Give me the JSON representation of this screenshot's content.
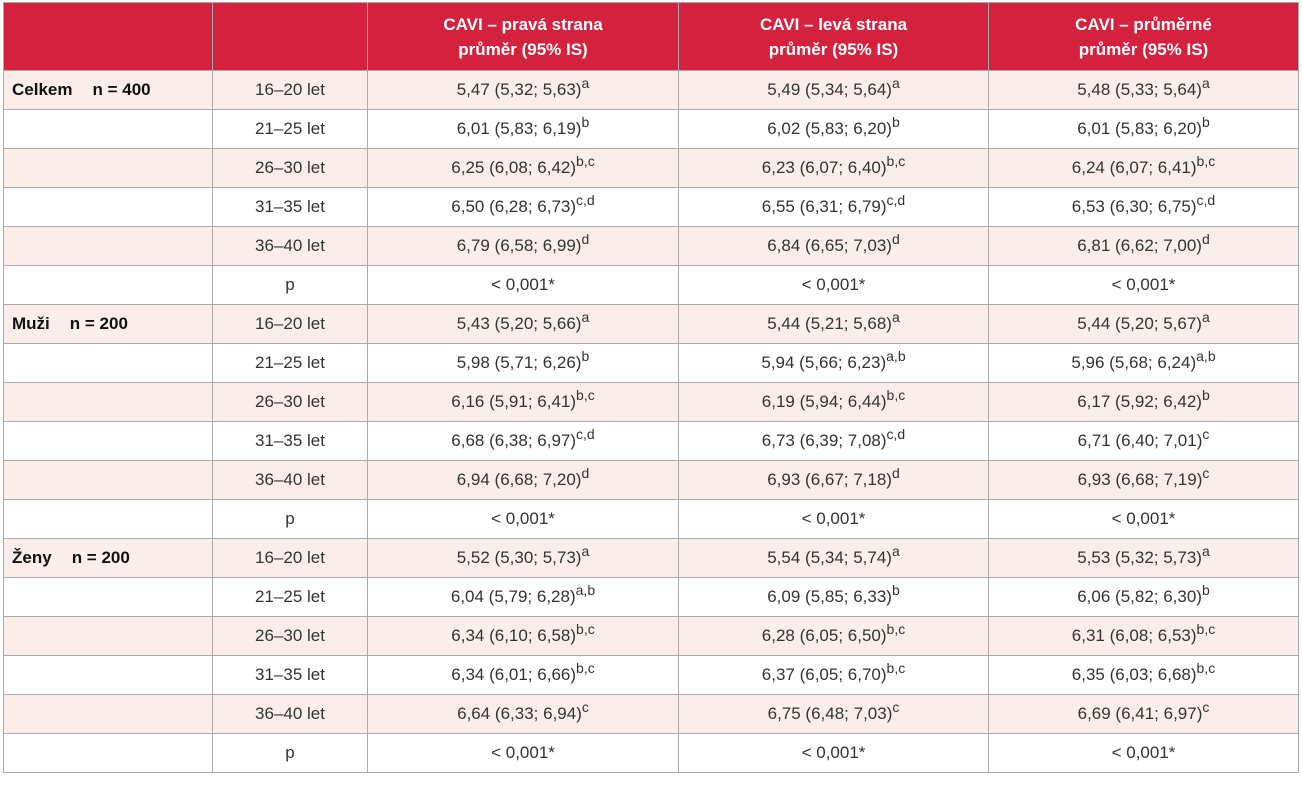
{
  "header": {
    "col0": "",
    "col1": "",
    "columns": [
      {
        "line1": "CAVI – pravá strana",
        "line2": "průměr (95% IS)"
      },
      {
        "line1": "CAVI – levá strana",
        "line2": "průměr (95% IS)"
      },
      {
        "line1": "CAVI – průměrné",
        "line2": "průměr (95% IS)"
      }
    ]
  },
  "groups": [
    {
      "name": "Celkem",
      "n": "n = 400",
      "rows": [
        {
          "age": "16–20 let",
          "cells": [
            {
              "v": "5,47 (5,32; 5,63)",
              "s": "a"
            },
            {
              "v": "5,49 (5,34; 5,64)",
              "s": "a"
            },
            {
              "v": "5,48 (5,33; 5,64)",
              "s": "a"
            }
          ]
        },
        {
          "age": "21–25 let",
          "cells": [
            {
              "v": "6,01 (5,83; 6,19)",
              "s": "b"
            },
            {
              "v": "6,02 (5,83; 6,20)",
              "s": "b"
            },
            {
              "v": "6,01 (5,83; 6,20)",
              "s": "b"
            }
          ]
        },
        {
          "age": "26–30 let",
          "cells": [
            {
              "v": "6,25 (6,08; 6,42)",
              "s": "b,c"
            },
            {
              "v": "6,23 (6,07; 6,40)",
              "s": "b,c"
            },
            {
              "v": "6,24 (6,07; 6,41)",
              "s": "b,c"
            }
          ]
        },
        {
          "age": "31–35 let",
          "cells": [
            {
              "v": "6,50 (6,28; 6,73)",
              "s": "c,d"
            },
            {
              "v": "6,55 (6,31; 6,79)",
              "s": "c,d"
            },
            {
              "v": "6,53 (6,30; 6,75)",
              "s": "c,d"
            }
          ]
        },
        {
          "age": "36–40 let",
          "cells": [
            {
              "v": "6,79 (6,58; 6,99)",
              "s": "d"
            },
            {
              "v": "6,84 (6,65; 7,03)",
              "s": "d"
            },
            {
              "v": "6,81 (6,62; 7,00)",
              "s": "d"
            }
          ]
        },
        {
          "age": "p",
          "cells": [
            {
              "v": "< 0,001*",
              "s": ""
            },
            {
              "v": "< 0,001*",
              "s": ""
            },
            {
              "v": "< 0,001*",
              "s": ""
            }
          ]
        }
      ]
    },
    {
      "name": "Muži",
      "n": "n = 200",
      "rows": [
        {
          "age": "16–20 let",
          "cells": [
            {
              "v": "5,43 (5,20; 5,66)",
              "s": "a"
            },
            {
              "v": "5,44 (5,21; 5,68)",
              "s": "a"
            },
            {
              "v": "5,44 (5,20; 5,67)",
              "s": "a"
            }
          ]
        },
        {
          "age": "21–25 let",
          "cells": [
            {
              "v": "5,98 (5,71; 6,26)",
              "s": "b"
            },
            {
              "v": "5,94 (5,66; 6,23)",
              "s": "a,b"
            },
            {
              "v": "5,96 (5,68; 6,24)",
              "s": "a,b"
            }
          ]
        },
        {
          "age": "26–30 let",
          "cells": [
            {
              "v": "6,16 (5,91; 6,41)",
              "s": "b,c"
            },
            {
              "v": "6,19 (5,94; 6,44)",
              "s": "b,c"
            },
            {
              "v": "6,17 (5,92; 6,42)",
              "s": "b"
            }
          ]
        },
        {
          "age": "31–35 let",
          "cells": [
            {
              "v": "6,68 (6,38; 6,97)",
              "s": "c,d"
            },
            {
              "v": "6,73 (6,39; 7,08)",
              "s": "c,d"
            },
            {
              "v": "6,71 (6,40; 7,01)",
              "s": "c"
            }
          ]
        },
        {
          "age": "36–40 let",
          "cells": [
            {
              "v": "6,94 (6,68; 7,20)",
              "s": "d"
            },
            {
              "v": "6,93 (6,67; 7,18)",
              "s": "d"
            },
            {
              "v": "6,93 (6,68; 7,19)",
              "s": "c"
            }
          ]
        },
        {
          "age": "p",
          "cells": [
            {
              "v": "< 0,001*",
              "s": ""
            },
            {
              "v": "< 0,001*",
              "s": ""
            },
            {
              "v": "< 0,001*",
              "s": ""
            }
          ]
        }
      ]
    },
    {
      "name": "Ženy",
      "n": "n = 200",
      "rows": [
        {
          "age": "16–20 let",
          "cells": [
            {
              "v": "5,52 (5,30; 5,73)",
              "s": "a"
            },
            {
              "v": "5,54 (5,34; 5,74)",
              "s": "a"
            },
            {
              "v": "5,53 (5,32; 5,73)",
              "s": "a"
            }
          ]
        },
        {
          "age": "21–25 let",
          "cells": [
            {
              "v": "6,04 (5,79; 6,28)",
              "s": "a,b"
            },
            {
              "v": "6,09 (5,85; 6,33)",
              "s": "b"
            },
            {
              "v": "6,06 (5,82; 6,30)",
              "s": "b"
            }
          ]
        },
        {
          "age": "26–30 let",
          "cells": [
            {
              "v": "6,34 (6,10; 6,58)",
              "s": "b,c"
            },
            {
              "v": "6,28 (6,05; 6,50)",
              "s": "b,c"
            },
            {
              "v": "6,31 (6,08; 6,53)",
              "s": "b,c"
            }
          ]
        },
        {
          "age": "31–35 let",
          "cells": [
            {
              "v": "6,34 (6,01; 6,66)",
              "s": "b,c"
            },
            {
              "v": "6,37 (6,05; 6,70)",
              "s": "b,c"
            },
            {
              "v": "6,35 (6,03; 6,68)",
              "s": "b,c"
            }
          ]
        },
        {
          "age": "36–40 let",
          "cells": [
            {
              "v": "6,64 (6,33; 6,94)",
              "s": "c"
            },
            {
              "v": "6,75 (6,48; 7,03)",
              "s": "c"
            },
            {
              "v": "6,69 (6,41; 6,97)",
              "s": "c"
            }
          ]
        },
        {
          "age": "p",
          "cells": [
            {
              "v": "< 0,001*",
              "s": ""
            },
            {
              "v": "< 0,001*",
              "s": ""
            },
            {
              "v": "< 0,001*",
              "s": ""
            }
          ]
        }
      ]
    }
  ]
}
